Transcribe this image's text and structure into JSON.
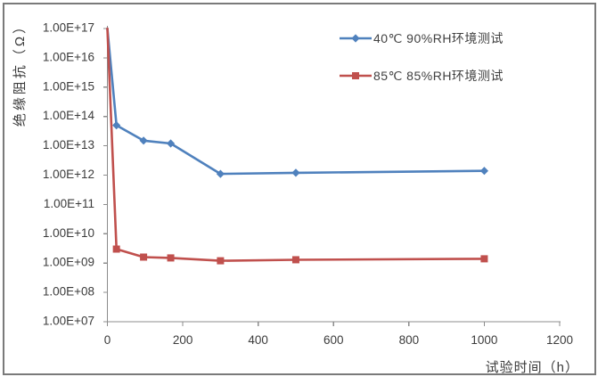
{
  "chart_data": {
    "type": "line",
    "title": "",
    "xlabel": "试验时间（h）",
    "ylabel": "绝缘阻抗（Ω）",
    "grid": false,
    "legend_position": "top-right",
    "x_axis": {
      "min": 0,
      "max": 1200,
      "tick_interval": 200,
      "tick_labels": [
        "0",
        "200",
        "400",
        "600",
        "800",
        "1000",
        "1200"
      ]
    },
    "y_axis": {
      "scale": "log10",
      "min": 10000000.0,
      "max": 1e+17,
      "tick_labels": [
        "1.00E+17",
        "1.00E+16",
        "1.00E+15",
        "1.00E+14",
        "1.00E+13",
        "1.00E+12",
        "1.00E+11",
        "1.00E+10",
        "1.00E+09",
        "1.00E+08",
        "1.00E+07"
      ]
    },
    "x": [
      0,
      24,
      96,
      168,
      300,
      500,
      1000
    ],
    "series": [
      {
        "name": "40℃ 90%RH环境测试",
        "color": "#4F81BD",
        "marker": "diamond",
        "values": [
          1e+17,
          50000000000000.0,
          15000000000000.0,
          12000000000000.0,
          1100000000000.0,
          1200000000000.0,
          1400000000000.0
        ]
      },
      {
        "name": "85℃ 85%RH环境测试",
        "color": "#C0504D",
        "marker": "square",
        "values": [
          1e+17,
          3000000000.0,
          1600000000.0,
          1500000000.0,
          1200000000.0,
          1300000000.0,
          1400000000.0
        ]
      }
    ]
  }
}
